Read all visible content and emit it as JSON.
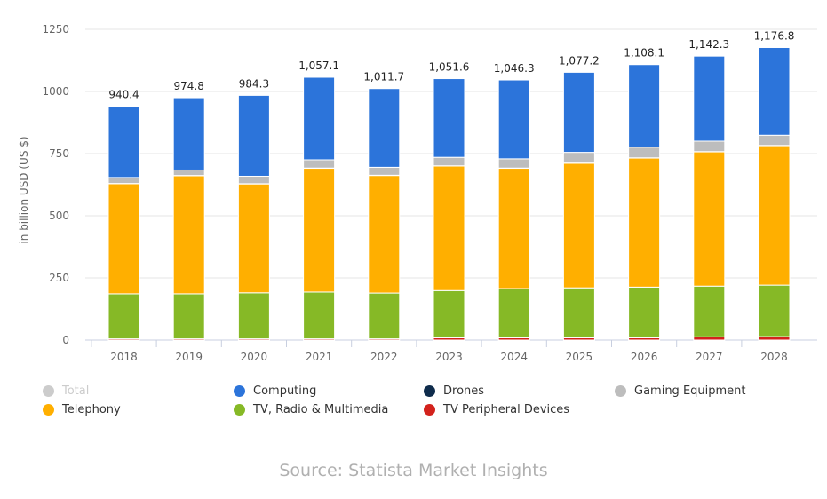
{
  "chart_data": {
    "type": "bar",
    "stacked": true,
    "title": "",
    "xlabel": "",
    "ylabel": "in billion USD (US $)",
    "ylim": [
      0,
      1250
    ],
    "yticks": [
      0,
      250,
      500,
      750,
      1000,
      1250
    ],
    "grid": true,
    "legend_position": "bottom",
    "categories": [
      "2018",
      "2019",
      "2020",
      "2021",
      "2022",
      "2023",
      "2024",
      "2025",
      "2026",
      "2027",
      "2028"
    ],
    "totals": [
      940.4,
      974.8,
      984.3,
      1057.1,
      1011.7,
      1051.6,
      1046.3,
      1077.2,
      1108.1,
      1142.3,
      1176.8
    ],
    "total_labels": [
      "940.4",
      "974.8",
      "984.3",
      "1,057.1",
      "1,011.7",
      "1,051.6",
      "1,046.3",
      "1,077.2",
      "1,108.1",
      "1,142.3",
      "1,176.8"
    ],
    "series": [
      {
        "name": "TV Peripheral Devices",
        "color": "#D3221C",
        "values": [
          5,
          5,
          5,
          5,
          5,
          9,
          9,
          9,
          9,
          13,
          14
        ]
      },
      {
        "name": "TV, Radio & Multimedia",
        "color": "#86B926",
        "values": [
          181,
          181,
          185,
          188,
          184,
          190,
          198,
          201,
          204,
          204,
          207
        ]
      },
      {
        "name": "Telephony",
        "color": "#FFAF00",
        "values": [
          443,
          475,
          438,
          498,
          473,
          501,
          484,
          501,
          519,
          540,
          561
        ]
      },
      {
        "name": "Drones",
        "color": "#0F2C4C",
        "values": [
          1,
          1,
          1,
          1,
          1,
          1,
          1,
          1,
          1,
          1,
          1
        ]
      },
      {
        "name": "Gaming Equipment",
        "color": "#BDBDBD",
        "values": [
          24,
          22,
          30,
          33,
          32,
          34,
          37,
          43,
          43,
          42,
          41
        ]
      },
      {
        "name": "Computing",
        "color": "#2C74DA",
        "values": [
          286.4,
          290.8,
          325.3,
          332.1,
          316.7,
          316.6,
          317.3,
          322.2,
          332.1,
          342.3,
          352.8
        ]
      }
    ],
    "legend": [
      {
        "name": "Total",
        "color": "#CCCCCC",
        "disabled": true
      },
      {
        "name": "Computing",
        "color": "#2C74DA",
        "disabled": false
      },
      {
        "name": "Drones",
        "color": "#0F2C4C",
        "disabled": false
      },
      {
        "name": "Gaming Equipment",
        "color": "#BDBDBD",
        "disabled": false
      },
      {
        "name": "Telephony",
        "color": "#FFAF00",
        "disabled": false
      },
      {
        "name": "TV, Radio & Multimedia",
        "color": "#86B926",
        "disabled": false
      },
      {
        "name": "TV Peripheral Devices",
        "color": "#D3221C",
        "disabled": false
      }
    ]
  },
  "source": "Source: Statista Market Insights"
}
